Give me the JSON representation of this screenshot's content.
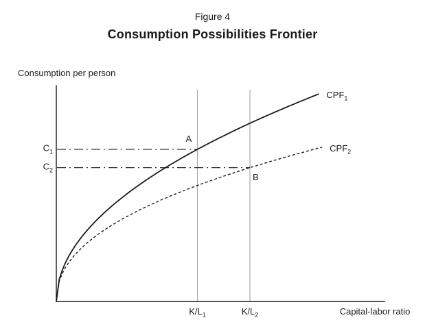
{
  "figure": {
    "number": "Figure 4",
    "title": "Consumption Possibilities Frontier"
  },
  "chart_data": {
    "type": "line",
    "title": "Consumption Possibilities Frontier",
    "xlabel": "Capital-labor ratio",
    "ylabel": "Consumption per person",
    "xlim": [
      0,
      1
    ],
    "ylim": [
      0,
      1
    ],
    "grid": "off",
    "legend_position": "inline-curve-end",
    "series": [
      {
        "name": "CPF1",
        "label_base": "CPF",
        "label_sub": "1",
        "style": "solid",
        "formula": "y = a * x^p",
        "a": 1.075,
        "p": 0.5,
        "x_max": 0.8
      },
      {
        "name": "CPF2",
        "label_base": "CPF",
        "label_sub": "2",
        "style": "dashed",
        "formula": "y = a * x^p",
        "a": 0.786,
        "p": 0.45,
        "x_max": 0.81
      }
    ],
    "reference_lines": {
      "vertical": [
        {
          "label_base": "K/L",
          "label_sub": "1",
          "x": 0.43
        },
        {
          "label_base": "K/L",
          "label_sub": "2",
          "x": 0.59
        }
      ],
      "horizontal": [
        {
          "label_base": "C",
          "label_sub": "1",
          "y": 0.705,
          "x_end": 0.43,
          "style": "dash-dot"
        },
        {
          "label_base": "C",
          "label_sub": "2",
          "y": 0.62,
          "x_end": 0.59,
          "style": "dash-dot"
        }
      ]
    },
    "points": [
      {
        "label": "A",
        "x": 0.43,
        "y": 0.705,
        "on": "CPF1"
      },
      {
        "label": "B",
        "x": 0.59,
        "y": 0.62,
        "on": "CPF2"
      }
    ],
    "colors": {
      "curve": "#1a1a1a",
      "reference_vertical": "#a8a8a8",
      "axis": "#1a1a1a",
      "background": "#ffffff"
    }
  }
}
